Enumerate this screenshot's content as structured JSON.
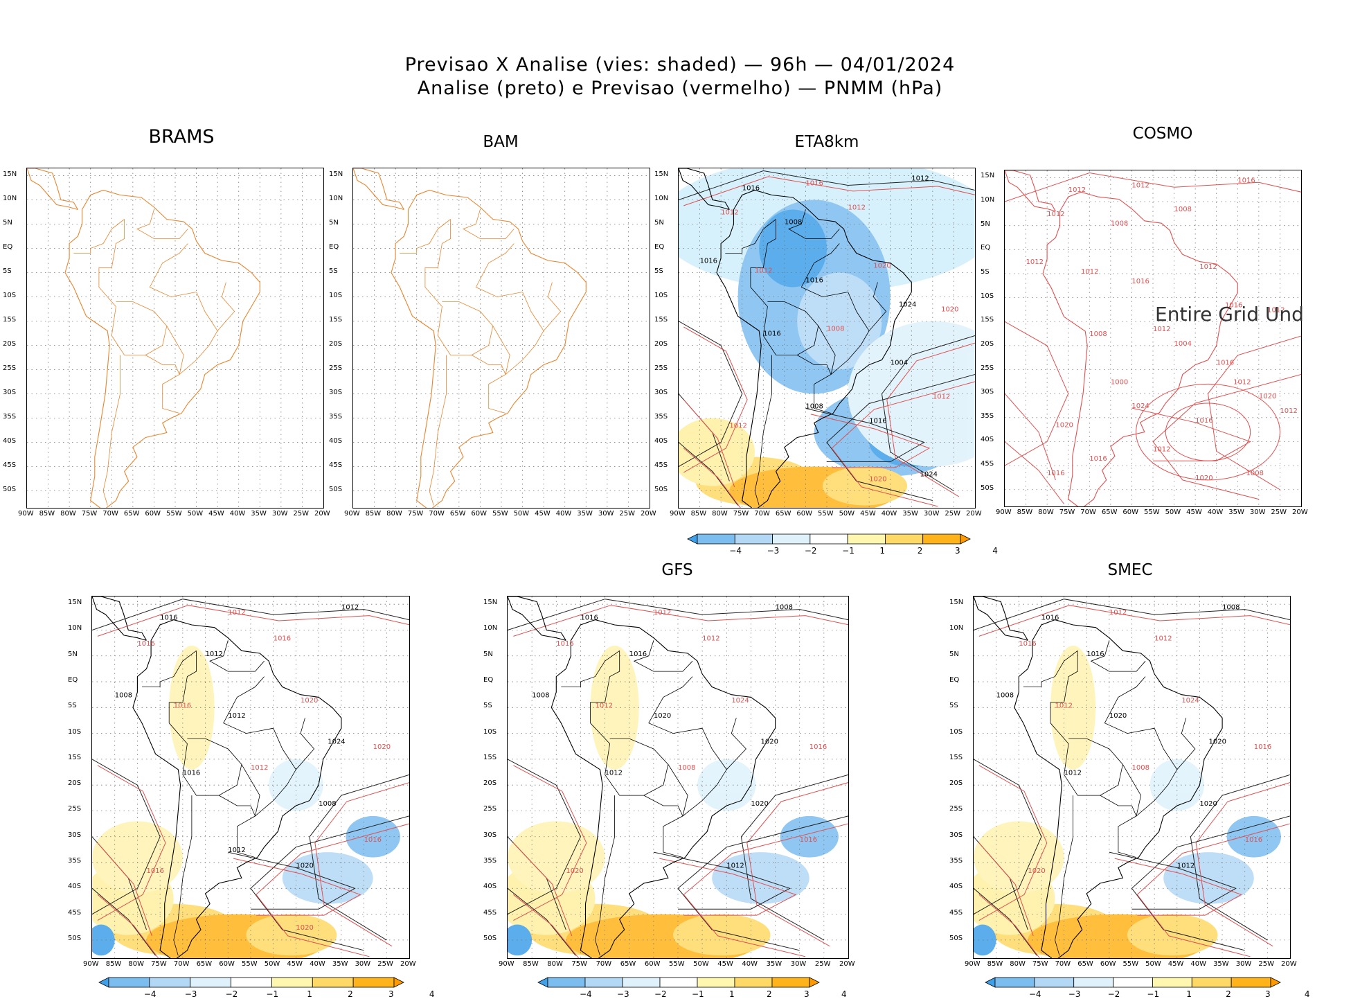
{
  "header": {
    "line1": "Previsao X Analise (vies: shaded) — 96h — 04/01/2024",
    "line2": "Analise (preto) e Previsao (vermelho) — PNMM (hPa)"
  },
  "panels": [
    {
      "id": "brams",
      "title": "BRAMS",
      "kind": "empty"
    },
    {
      "id": "bam",
      "title": "BAM",
      "kind": "empty"
    },
    {
      "id": "eta",
      "title": "ETA8km",
      "kind": "filled"
    },
    {
      "id": "cosmo",
      "title": "COSMO",
      "kind": "cosmo",
      "note": "Entire Grid Und"
    },
    {
      "id": "unnamed",
      "title": "",
      "kind": "filled"
    },
    {
      "id": "gfs",
      "title": "GFS",
      "kind": "filled"
    },
    {
      "id": "smec",
      "title": "SMEC",
      "kind": "filled"
    }
  ],
  "axes": {
    "lat_labels": [
      "15N",
      "10N",
      "5N",
      "EQ",
      "5S",
      "10S",
      "15S",
      "20S",
      "25S",
      "30S",
      "35S",
      "40S",
      "45S",
      "50S"
    ],
    "lon_labels": [
      "90W",
      "85W",
      "80W",
      "75W",
      "70W",
      "65W",
      "60W",
      "55W",
      "50W",
      "45W",
      "40W",
      "35W",
      "30W",
      "25W",
      "20W"
    ]
  },
  "colorbar": {
    "labels": [
      "−4",
      "−3",
      "−2",
      "−1",
      "1",
      "2",
      "3",
      "4"
    ],
    "colors": [
      "#3f9fe8",
      "#7cbdf0",
      "#b3d8f5",
      "#dff2fb",
      "#ffffff",
      "#fff6b0",
      "#ffd966",
      "#ffb31a",
      "#ff9900"
    ]
  },
  "isobars": {
    "eta": [
      "1016",
      "1016",
      "1012",
      "1012",
      "1008",
      "1012",
      "1016",
      "1012",
      "1016",
      "1020",
      "1024",
      "1020",
      "1016",
      "1008",
      "1004",
      "1012",
      "1016",
      "1012",
      "1008",
      "1020",
      "1024"
    ],
    "cosmo": [
      "1012",
      "1012",
      "1016",
      "1012",
      "1008",
      "1008",
      "1012",
      "1012",
      "1016",
      "1012",
      "1016",
      "1012",
      "1008",
      "1012",
      "1016",
      "1020",
      "1016",
      "1020",
      "1024",
      "1020",
      "1008",
      "1012",
      "1016",
      "1004",
      "1000",
      "1016",
      "1012",
      "1012"
    ],
    "unnamed": [
      "1016",
      "1012",
      "1012",
      "1016",
      "1012",
      "1016",
      "1008",
      "1016",
      "1012",
      "1020",
      "1024",
      "1020",
      "1016",
      "1012",
      "1008",
      "1016",
      "1020",
      "1016",
      "1012",
      "1020"
    ],
    "gfs": [
      "1016",
      "1012",
      "1008",
      "1016",
      "1016",
      "1012",
      "1008",
      "1012",
      "1020",
      "1024",
      "1020",
      "1016",
      "1012",
      "1008",
      "1020",
      "1016",
      "1012",
      "1020"
    ],
    "smec": [
      "1016",
      "1012",
      "1008",
      "1016",
      "1016",
      "1012",
      "1008",
      "1012",
      "1020",
      "1024",
      "1020",
      "1016",
      "1012",
      "1008",
      "1020",
      "1016",
      "1012",
      "1020"
    ]
  }
}
